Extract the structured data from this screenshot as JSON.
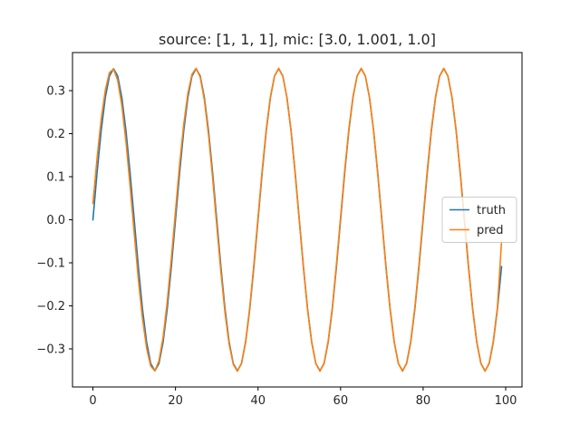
{
  "chart_data": {
    "type": "line",
    "title": "source: [1, 1, 1], mic: [3.0, 1.001, 1.0]",
    "xlabel": "",
    "ylabel": "",
    "xlim": [
      -4.95,
      103.95
    ],
    "ylim": [
      -0.3885,
      0.3885
    ],
    "x_ticks": [
      0,
      20,
      40,
      60,
      80,
      100
    ],
    "x_tick_labels": [
      "0",
      "20",
      "40",
      "60",
      "80",
      "100"
    ],
    "y_ticks": [
      -0.3,
      -0.2,
      -0.1,
      0.0,
      0.1,
      0.2,
      0.3
    ],
    "y_tick_labels": [
      "−0.3",
      "−0.2",
      "−0.1",
      "0.0",
      "0.1",
      "0.2",
      "0.3"
    ],
    "grid": false,
    "legend": {
      "position": "center-right"
    },
    "series": [
      {
        "name": "truth",
        "color": "#1f77b4",
        "x": [
          0,
          1,
          2,
          3,
          4,
          5,
          6,
          7,
          8,
          9,
          10,
          11,
          12,
          13,
          14,
          15,
          16,
          17,
          18,
          19,
          20,
          21,
          22,
          23,
          24,
          25,
          26,
          27,
          28,
          29,
          30,
          31,
          32,
          33,
          34,
          35,
          36,
          37,
          38,
          39,
          40,
          41,
          42,
          43,
          44,
          45,
          46,
          47,
          48,
          49,
          50,
          51,
          52,
          53,
          54,
          55,
          56,
          57,
          58,
          59,
          60,
          61,
          62,
          63,
          64,
          65,
          66,
          67,
          68,
          69,
          70,
          71,
          72,
          73,
          74,
          75,
          76,
          77,
          78,
          79,
          80,
          81,
          82,
          83,
          84,
          85,
          86,
          87,
          88,
          89,
          90,
          91,
          92,
          93,
          94,
          95,
          96,
          97,
          98,
          99
        ],
        "y": [
          0.0,
          0.109,
          0.207,
          0.284,
          0.334,
          0.351,
          0.334,
          0.284,
          0.207,
          0.109,
          0.0,
          -0.109,
          -0.207,
          -0.284,
          -0.334,
          -0.351,
          -0.334,
          -0.284,
          -0.207,
          -0.109,
          0.0,
          0.109,
          0.207,
          0.284,
          0.334,
          0.351,
          0.334,
          0.284,
          0.207,
          0.109,
          0.0,
          -0.109,
          -0.207,
          -0.284,
          -0.334,
          -0.351,
          -0.334,
          -0.284,
          -0.207,
          -0.109,
          0.0,
          0.109,
          0.207,
          0.284,
          0.334,
          0.351,
          0.334,
          0.284,
          0.207,
          0.109,
          0.0,
          -0.109,
          -0.207,
          -0.284,
          -0.334,
          -0.351,
          -0.334,
          -0.284,
          -0.207,
          -0.109,
          0.0,
          0.109,
          0.207,
          0.284,
          0.334,
          0.351,
          0.334,
          0.284,
          0.207,
          0.109,
          0.0,
          -0.109,
          -0.207,
          -0.284,
          -0.334,
          -0.351,
          -0.334,
          -0.284,
          -0.207,
          -0.109,
          0.0,
          0.109,
          0.207,
          0.284,
          0.334,
          0.351,
          0.334,
          0.284,
          0.207,
          0.109,
          0.0,
          -0.109,
          -0.207,
          -0.284,
          -0.334,
          -0.351,
          -0.334,
          -0.284,
          -0.207,
          -0.109
        ]
      },
      {
        "name": "pred",
        "color": "#ff7f0e",
        "x": [
          0,
          1,
          2,
          3,
          4,
          5,
          6,
          7,
          8,
          9,
          10,
          11,
          12,
          13,
          14,
          15,
          16,
          17,
          18,
          19,
          20,
          21,
          22,
          23,
          24,
          25,
          26,
          27,
          28,
          29,
          30,
          31,
          32,
          33,
          34,
          35,
          36,
          37,
          38,
          39,
          40,
          41,
          42,
          43,
          44,
          45,
          46,
          47,
          48,
          49,
          50,
          51,
          52,
          53,
          54,
          55,
          56,
          57,
          58,
          59,
          60,
          61,
          62,
          63,
          64,
          65,
          66,
          67,
          68,
          69,
          70,
          71,
          72,
          73,
          74,
          75,
          76,
          77,
          78,
          79,
          80,
          81,
          82,
          83,
          84,
          85,
          86,
          87,
          88,
          89,
          90,
          91,
          92,
          93,
          94,
          95,
          96,
          97,
          98,
          99
        ],
        "y": [
          0.038,
          0.143,
          0.233,
          0.301,
          0.342,
          0.35,
          0.324,
          0.266,
          0.182,
          0.079,
          -0.031,
          -0.138,
          -0.229,
          -0.298,
          -0.34,
          -0.351,
          -0.328,
          -0.273,
          -0.191,
          -0.09,
          0.02,
          0.128,
          0.222,
          0.293,
          0.338,
          0.352,
          0.331,
          0.278,
          0.198,
          0.097,
          -0.013,
          -0.121,
          -0.216,
          -0.289,
          -0.336,
          -0.352,
          -0.333,
          -0.282,
          -0.203,
          -0.103,
          0.006,
          0.115,
          0.211,
          0.286,
          0.334,
          0.352,
          0.334,
          0.284,
          0.206,
          0.106,
          -0.003,
          -0.112,
          -0.209,
          -0.285,
          -0.334,
          -0.352,
          -0.333,
          -0.282,
          -0.203,
          -0.103,
          0.006,
          0.115,
          0.211,
          0.286,
          0.334,
          0.352,
          0.334,
          0.284,
          0.206,
          0.106,
          -0.003,
          -0.112,
          -0.209,
          -0.285,
          -0.334,
          -0.352,
          -0.333,
          -0.282,
          -0.203,
          -0.103,
          0.006,
          0.115,
          0.211,
          0.286,
          0.334,
          0.352,
          0.334,
          0.284,
          0.206,
          0.106,
          -0.003,
          -0.112,
          -0.209,
          -0.285,
          -0.334,
          -0.352,
          -0.333,
          -0.282,
          -0.203,
          -0.05
        ]
      }
    ]
  }
}
